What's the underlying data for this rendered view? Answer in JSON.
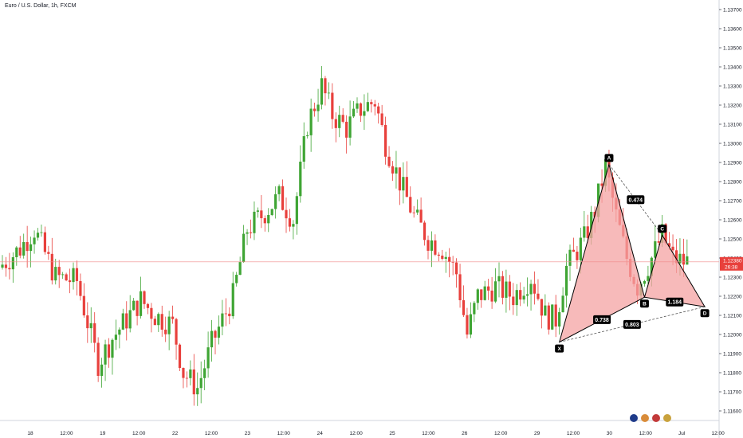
{
  "header": {
    "symbol_title": "Euro / U.S. Dollar, 1h, FXCM"
  },
  "colors": {
    "bull": "#3fa534",
    "bear": "#e8403c",
    "pattern_fill": "#f4a3a3",
    "pattern_stroke": "#000000",
    "current_price_line": "#f28b8b",
    "price_tag_bg": "#e8403c",
    "label_bg": "#000000"
  },
  "chart_data": {
    "type": "candlestick",
    "title": "",
    "ylim": [
      1.1155,
      1.1375
    ],
    "y_ticks": [
      "1.11600",
      "1.11700",
      "1.11800",
      "1.11900",
      "1.12000",
      "1.12100",
      "1.12200",
      "1.12300",
      "1.12400",
      "1.12500",
      "1.12600",
      "1.12700",
      "1.12800",
      "1.12900",
      "1.13000",
      "1.13100",
      "1.13200",
      "1.13300",
      "1.13400",
      "1.13500",
      "1.13600",
      "1.13700"
    ],
    "x_ticks": [
      "18",
      "12:00",
      "19",
      "12:00",
      "22",
      "12:00",
      "23",
      "12:00",
      "24",
      "12:00",
      "25",
      "12:00",
      "26",
      "12:00",
      "29",
      "12:00",
      "30",
      "12:00",
      "Jul",
      "12:00"
    ],
    "current_price": "1.12380",
    "countdown": "26:38",
    "anchors": [
      {
        "t": 0,
        "p": 1.1235
      },
      {
        "t": 6,
        "p": 1.1245
      },
      {
        "t": 10,
        "p": 1.1255
      },
      {
        "t": 16,
        "p": 1.123
      },
      {
        "t": 22,
        "p": 1.1228
      },
      {
        "t": 28,
        "p": 1.1185
      },
      {
        "t": 32,
        "p": 1.1198
      },
      {
        "t": 40,
        "p": 1.1218
      },
      {
        "t": 44,
        "p": 1.121
      },
      {
        "t": 49,
        "p": 1.1205
      },
      {
        "t": 52,
        "p": 1.118
      },
      {
        "t": 56,
        "p": 1.1172
      },
      {
        "t": 60,
        "p": 1.1195
      },
      {
        "t": 66,
        "p": 1.122
      },
      {
        "t": 70,
        "p": 1.1255
      },
      {
        "t": 74,
        "p": 1.1262
      },
      {
        "t": 79,
        "p": 1.1272
      },
      {
        "t": 83,
        "p": 1.126
      },
      {
        "t": 87,
        "p": 1.131
      },
      {
        "t": 91,
        "p": 1.133
      },
      {
        "t": 94,
        "p": 1.1315
      },
      {
        "t": 98,
        "p": 1.1308
      },
      {
        "t": 102,
        "p": 1.1318
      },
      {
        "t": 106,
        "p": 1.1322
      },
      {
        "t": 109,
        "p": 1.13
      },
      {
        "t": 113,
        "p": 1.128
      },
      {
        "t": 117,
        "p": 1.1262
      },
      {
        "t": 121,
        "p": 1.125
      },
      {
        "t": 125,
        "p": 1.1245
      },
      {
        "t": 129,
        "p": 1.1232
      },
      {
        "t": 132,
        "p": 1.12
      },
      {
        "t": 135,
        "p": 1.122
      },
      {
        "t": 140,
        "p": 1.1225
      },
      {
        "t": 145,
        "p": 1.122
      },
      {
        "t": 150,
        "p": 1.123
      },
      {
        "t": 154,
        "p": 1.121
      },
      {
        "t": 157,
        "p": 1.1208
      },
      {
        "t": 160,
        "p": 1.1235
      },
      {
        "t": 165,
        "p": 1.125
      },
      {
        "t": 168,
        "p": 1.1265
      },
      {
        "t": 171,
        "p": 1.1288
      },
      {
        "t": 174,
        "p": 1.1262
      },
      {
        "t": 177,
        "p": 1.124
      },
      {
        "t": 180,
        "p": 1.1225
      },
      {
        "t": 184,
        "p": 1.124
      },
      {
        "t": 187,
        "p": 1.1252
      },
      {
        "t": 190,
        "p": 1.124
      },
      {
        "t": 193,
        "p": 1.1238
      }
    ],
    "harmonic_pattern": {
      "points": [
        {
          "name": "X",
          "t": 157,
          "p": 1.1196
        },
        {
          "name": "A",
          "t": 171,
          "p": 1.1289
        },
        {
          "name": "B",
          "t": 181,
          "p": 1.12195
        },
        {
          "name": "C",
          "t": 186,
          "p": 1.1252
        },
        {
          "name": "D",
          "t": 198,
          "p": 1.12145
        }
      ],
      "ratios": [
        {
          "label": "0.474",
          "between": [
            "A",
            "C"
          ]
        },
        {
          "label": "0.738",
          "between": [
            "X",
            "B"
          ]
        },
        {
          "label": "1.184",
          "between": [
            "B",
            "D"
          ]
        },
        {
          "label": "0.803",
          "between": [
            "X",
            "D"
          ]
        }
      ]
    }
  }
}
